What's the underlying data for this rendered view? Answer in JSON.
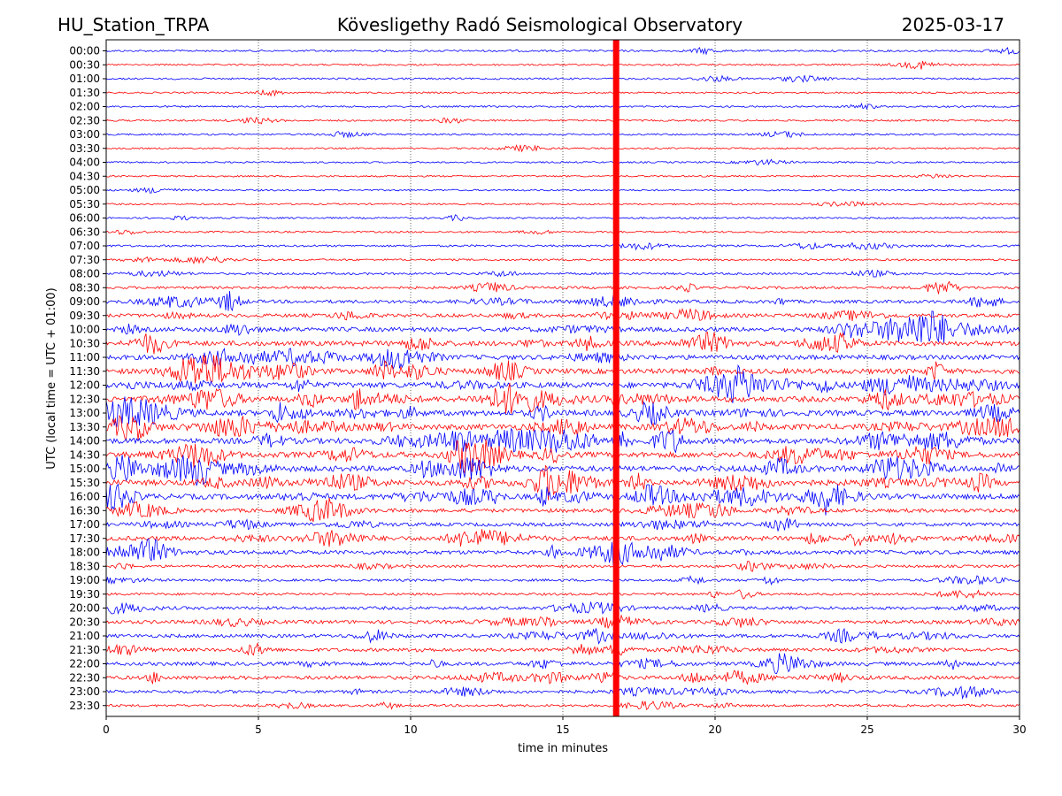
{
  "header": {
    "station": "HU_Station_TRPA",
    "observatory": "Kövesligethy Radó Seismological Observatory",
    "date": "2025-03-17"
  },
  "chart_data": {
    "type": "line",
    "xlabel": "time in minutes",
    "ylabel": "UTC (local time = UTC + 01:00)",
    "xlim": [
      0,
      30
    ],
    "x_ticks": [
      "0",
      "5",
      "10",
      "15",
      "20",
      "25",
      "30"
    ],
    "grid": "vertical dotted at 5-minute ticks",
    "row_labels": [
      "00:00",
      "00:30",
      "01:00",
      "01:30",
      "02:00",
      "02:30",
      "03:00",
      "03:30",
      "04:00",
      "04:30",
      "05:00",
      "05:30",
      "06:00",
      "06:30",
      "07:00",
      "07:30",
      "08:00",
      "08:30",
      "09:00",
      "09:30",
      "10:00",
      "10:30",
      "11:00",
      "11:30",
      "12:00",
      "12:30",
      "13:00",
      "13:30",
      "14:00",
      "14:30",
      "15:00",
      "15:30",
      "16:00",
      "16:30",
      "17:00",
      "17:30",
      "18:00",
      "18:30",
      "19:00",
      "19:30",
      "20:00",
      "20:30",
      "21:00",
      "21:30",
      "22:00",
      "22:30",
      "23:00",
      "23:30"
    ],
    "row_colors": [
      "#0000ff",
      "#ff0000"
    ],
    "row_activity": [
      0.18,
      0.15,
      0.18,
      0.12,
      0.14,
      0.16,
      0.16,
      0.12,
      0.13,
      0.13,
      0.13,
      0.14,
      0.15,
      0.15,
      0.22,
      0.2,
      0.25,
      0.35,
      0.5,
      0.55,
      0.75,
      0.85,
      0.8,
      0.9,
      1.0,
      1.0,
      1.0,
      1.0,
      1.0,
      1.0,
      1.0,
      1.0,
      0.95,
      0.6,
      0.55,
      0.75,
      0.65,
      0.35,
      0.3,
      0.3,
      0.45,
      0.55,
      0.55,
      0.5,
      0.55,
      0.6,
      0.45,
      0.3
    ],
    "current_time_marker": {
      "row": "16:30",
      "minute": 16.75,
      "color": "#ff0000"
    }
  }
}
